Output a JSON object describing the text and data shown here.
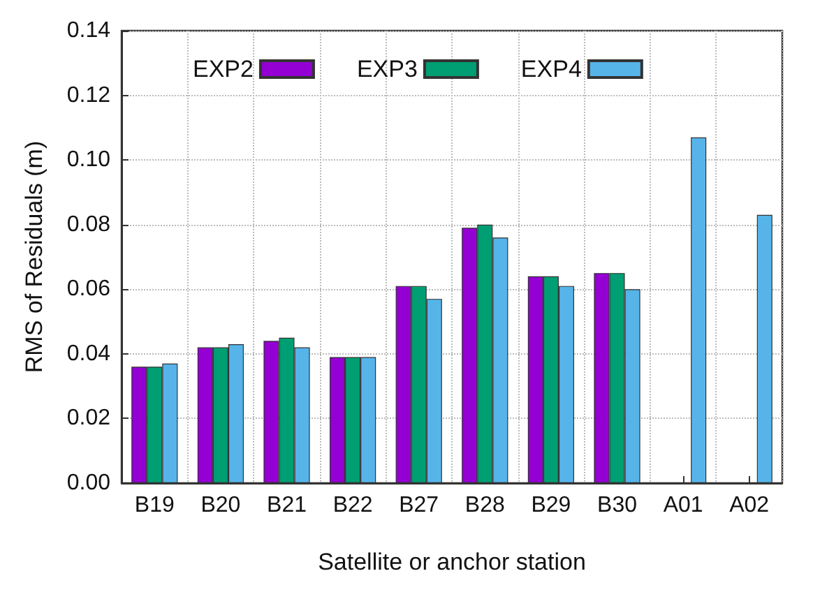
{
  "chart_data": {
    "type": "bar",
    "xlabel": "Satellite or anchor station",
    "ylabel": "RMS of Residuals (m)",
    "categories": [
      "B19",
      "B20",
      "B21",
      "B22",
      "B27",
      "B28",
      "B29",
      "B30",
      "A01",
      "A02"
    ],
    "series": [
      {
        "name": "EXP2",
        "color": "#9400d3",
        "values": [
          0.036,
          0.042,
          0.044,
          0.039,
          0.061,
          0.079,
          0.064,
          0.065,
          null,
          null
        ]
      },
      {
        "name": "EXP3",
        "color": "#009e73",
        "values": [
          0.036,
          0.042,
          0.045,
          0.039,
          0.061,
          0.08,
          0.064,
          0.065,
          null,
          null
        ]
      },
      {
        "name": "EXP4",
        "color": "#56b4e9",
        "values": [
          0.037,
          0.043,
          0.042,
          0.039,
          0.057,
          0.076,
          0.061,
          0.06,
          0.107,
          0.083
        ]
      }
    ],
    "ylim": [
      0,
      0.14
    ],
    "yticks": [
      {
        "value": 0,
        "label": "0.00"
      },
      0.02,
      0.04,
      0.06,
      0.08,
      {
        "value": 0.1,
        "label": "0.10"
      },
      0.12,
      0.14
    ],
    "grid": true,
    "legend": "top"
  }
}
